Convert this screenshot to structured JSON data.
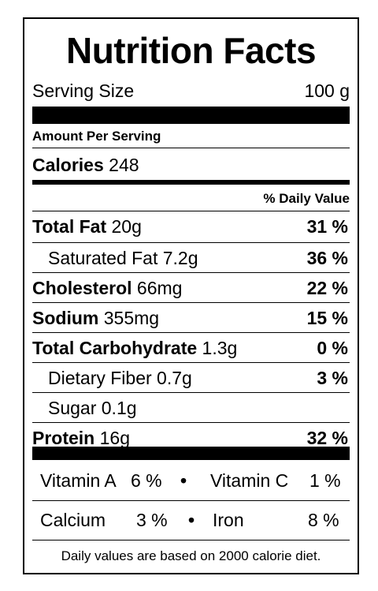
{
  "title": "Nutrition Facts",
  "serving": {
    "label": "Serving Size",
    "value": "100 g"
  },
  "amount_per_serving": "Amount Per Serving",
  "calories": {
    "label": "Calories",
    "value": "248"
  },
  "daily_value_header": "% Daily Value",
  "nutrients": [
    {
      "name": "Total Fat",
      "amount": "20g",
      "dv": "31 %"
    },
    {
      "name": "Saturated Fat",
      "amount": "7.2g",
      "dv": "36 %"
    },
    {
      "name": "Cholesterol",
      "amount": "66mg",
      "dv": "22 %"
    },
    {
      "name": "Sodium",
      "amount": "355mg",
      "dv": "15 %"
    },
    {
      "name": "Total Carbohydrate",
      "amount": "1.3g",
      "dv": "0 %"
    },
    {
      "name": "Dietary Fiber",
      "amount": "0.7g",
      "dv": "3 %"
    },
    {
      "name": "Sugar",
      "amount": "0.1g",
      "dv": ""
    },
    {
      "name": "Protein",
      "amount": "16g",
      "dv": "32 %"
    }
  ],
  "vitamins": [
    {
      "name": "Vitamin A",
      "dv": "6 %"
    },
    {
      "name": "Vitamin C",
      "dv": "1 %"
    },
    {
      "name": "Calcium",
      "dv": "3 %"
    },
    {
      "name": "Iron",
      "dv": "8 %"
    }
  ],
  "bullet": "•",
  "footnote": "Daily values are based on 2000 calorie diet."
}
